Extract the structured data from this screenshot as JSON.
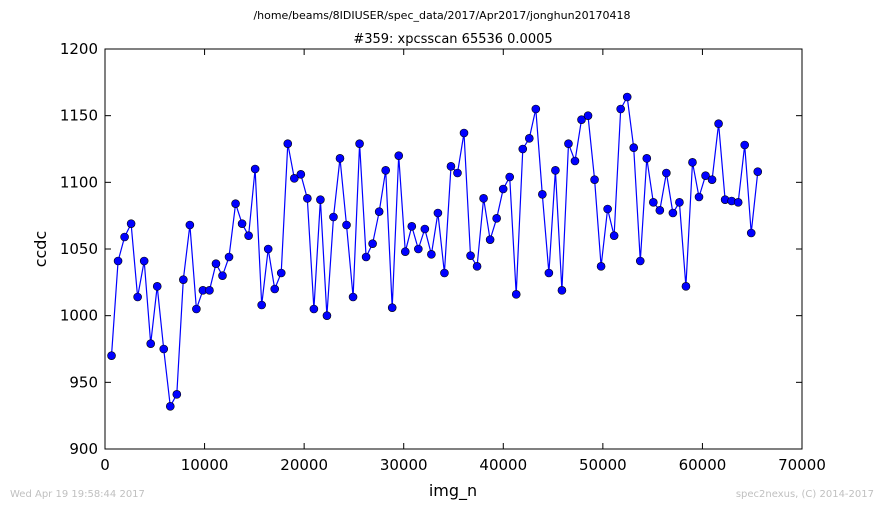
{
  "chart_data": {
    "type": "line",
    "suptitle": "/home/beams/8IDIUSER/spec_data/2017/Apr2017/jonghun20170418",
    "title": "#359: xpcsscan 65536 0.0005",
    "xlabel": "img_n",
    "ylabel": "ccdc",
    "xlim": [
      0,
      70000
    ],
    "ylim": [
      900,
      1200
    ],
    "xticks": [
      0,
      10000,
      20000,
      30000,
      40000,
      50000,
      60000,
      70000
    ],
    "yticks": [
      900,
      950,
      1000,
      1050,
      1100,
      1150,
      1200
    ],
    "grid": false,
    "line_color": "#0000ff",
    "marker": "circle",
    "x": [
      656,
      1312,
      1967,
      2622,
      3278,
      3934,
      4590,
      5245,
      5900,
      6556,
      7212,
      7867,
      8522,
      9178,
      9834,
      10490,
      11145,
      11800,
      12456,
      13112,
      13767,
      14422,
      15078,
      15734,
      16390,
      17045,
      17700,
      18356,
      19012,
      19667,
      20322,
      20978,
      21634,
      22290,
      22945,
      23600,
      24256,
      24912,
      25567,
      26222,
      26878,
      27534,
      28190,
      28845,
      29500,
      30156,
      30812,
      31467,
      32122,
      32778,
      33434,
      34090,
      34745,
      35400,
      36056,
      36712,
      37367,
      38022,
      38678,
      39334,
      39990,
      40645,
      41300,
      41956,
      42612,
      43267,
      43922,
      44578,
      45234,
      45890,
      46545,
      47200,
      47856,
      48512,
      49167,
      49822,
      50478,
      51134,
      51790,
      52445,
      53100,
      53756,
      54412,
      55067,
      55722,
      56378,
      57034,
      57690,
      58345,
      59000,
      59656,
      60312,
      60967,
      61622,
      62278,
      62934,
      63590,
      64245,
      64900,
      65556
    ],
    "y": [
      970,
      1041,
      1059,
      1069,
      1014,
      1041,
      979,
      1022,
      975,
      932,
      941,
      1027,
      1068,
      1005,
      1019,
      1019,
      1039,
      1030,
      1044,
      1084,
      1069,
      1060,
      1110,
      1008,
      1050,
      1020,
      1032,
      1129,
      1103,
      1106,
      1088,
      1005,
      1087,
      1000,
      1074,
      1118,
      1068,
      1014,
      1129,
      1044,
      1054,
      1078,
      1109,
      1006,
      1120,
      1048,
      1067,
      1050,
      1065,
      1046,
      1077,
      1032,
      1112,
      1107,
      1137,
      1045,
      1037,
      1088,
      1057,
      1073,
      1095,
      1104,
      1016,
      1125,
      1133,
      1155,
      1091,
      1032,
      1109,
      1019,
      1129,
      1116,
      1147,
      1150,
      1102,
      1037,
      1080,
      1060,
      1155,
      1164,
      1126,
      1041,
      1118,
      1085,
      1079,
      1107,
      1077,
      1085,
      1022,
      1115,
      1089,
      1105,
      1102,
      1144,
      1087,
      1086,
      1085,
      1128,
      1062,
      1108
    ]
  },
  "footer": {
    "timestamp": "Wed Apr 19 19:58:44 2017",
    "credit": "spec2nexus, (C) 2014-2017"
  }
}
